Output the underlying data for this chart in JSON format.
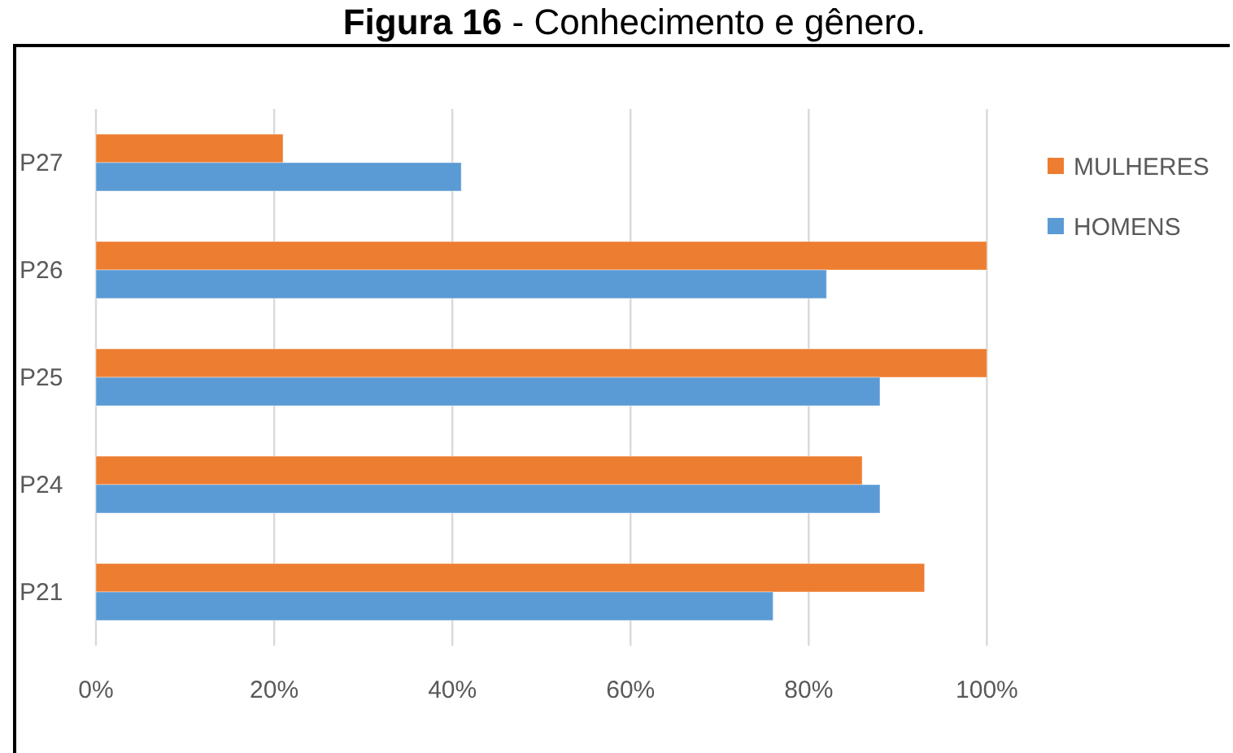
{
  "chart_data": {
    "type": "bar",
    "orientation": "horizontal",
    "title": "Figura 16 - Conhecimento e gênero.",
    "categories": [
      "P27",
      "P26",
      "P25",
      "P24",
      "P21"
    ],
    "series": [
      {
        "name": "MULHERES",
        "color": "#ed7d31",
        "values": [
          21,
          100,
          100,
          86,
          93
        ]
      },
      {
        "name": "HOMENS",
        "color": "#5b9bd5",
        "values": [
          41,
          82,
          88,
          88,
          76
        ]
      }
    ],
    "xlim": [
      0,
      100
    ],
    "xticks": [
      {
        "value": 0,
        "label": "0%"
      },
      {
        "value": 20,
        "label": "20%"
      },
      {
        "value": 40,
        "label": "40%"
      },
      {
        "value": 60,
        "label": "60%"
      },
      {
        "value": 80,
        "label": "80%"
      },
      {
        "value": 100,
        "label": "100%"
      }
    ],
    "grid": "x",
    "legend": "right"
  }
}
